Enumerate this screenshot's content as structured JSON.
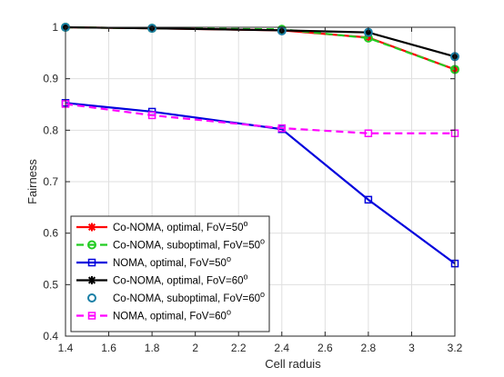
{
  "chart_data": {
    "type": "line",
    "xlabel": "Cell raduis",
    "ylabel": "Fairness",
    "xlim": [
      1.4,
      3.2
    ],
    "ylim": [
      0.4,
      1.0
    ],
    "xticks": [
      "1.4",
      "1.6",
      "1.8",
      "2",
      "2.2",
      "2.4",
      "2.6",
      "2.8",
      "3",
      "3.2"
    ],
    "yticks": [
      "0.4",
      "0.5",
      "0.6",
      "0.7",
      "0.8",
      "0.9",
      "1"
    ],
    "grid": true,
    "legend_position": "bottom-left",
    "x": [
      1.4,
      1.8,
      2.4,
      2.8,
      3.2
    ],
    "series": [
      {
        "name": "Co-NOMA, optimal, FoV=50",
        "sup": "o",
        "color": "#ff0000",
        "marker": "asterisk",
        "dash": "solid",
        "values": [
          1.0,
          0.998,
          0.994,
          0.98,
          0.918
        ]
      },
      {
        "name": "Co-NOMA, suboptimal, FoV=50",
        "sup": "o",
        "color": "#22cc22",
        "marker": "circle",
        "dash": "dashed",
        "values": [
          1.0,
          0.998,
          0.996,
          0.979,
          0.918
        ]
      },
      {
        "name": "NOMA, optimal, FoV=50",
        "sup": "o",
        "color": "#0000dd",
        "marker": "square",
        "dash": "solid",
        "values": [
          0.853,
          0.836,
          0.802,
          0.665,
          0.541
        ]
      },
      {
        "name": "Co-NOMA, optimal, FoV=60",
        "sup": "o",
        "color": "#000000",
        "marker": "asterisk",
        "dash": "solid",
        "values": [
          1.0,
          0.998,
          0.994,
          0.99,
          0.943
        ]
      },
      {
        "name": "Co-NOMA, suboptimal, FoV=60",
        "sup": "o",
        "color": "#1a7fa6",
        "marker": "circle",
        "dash": "none",
        "values": [
          1.0,
          0.998,
          0.993,
          0.99,
          0.943
        ]
      },
      {
        "name": "NOMA, optimal, FoV=60",
        "sup": "o",
        "color": "#ff00ff",
        "marker": "square",
        "dash": "dashed",
        "values": [
          0.851,
          0.829,
          0.804,
          0.794,
          0.794
        ]
      }
    ]
  }
}
